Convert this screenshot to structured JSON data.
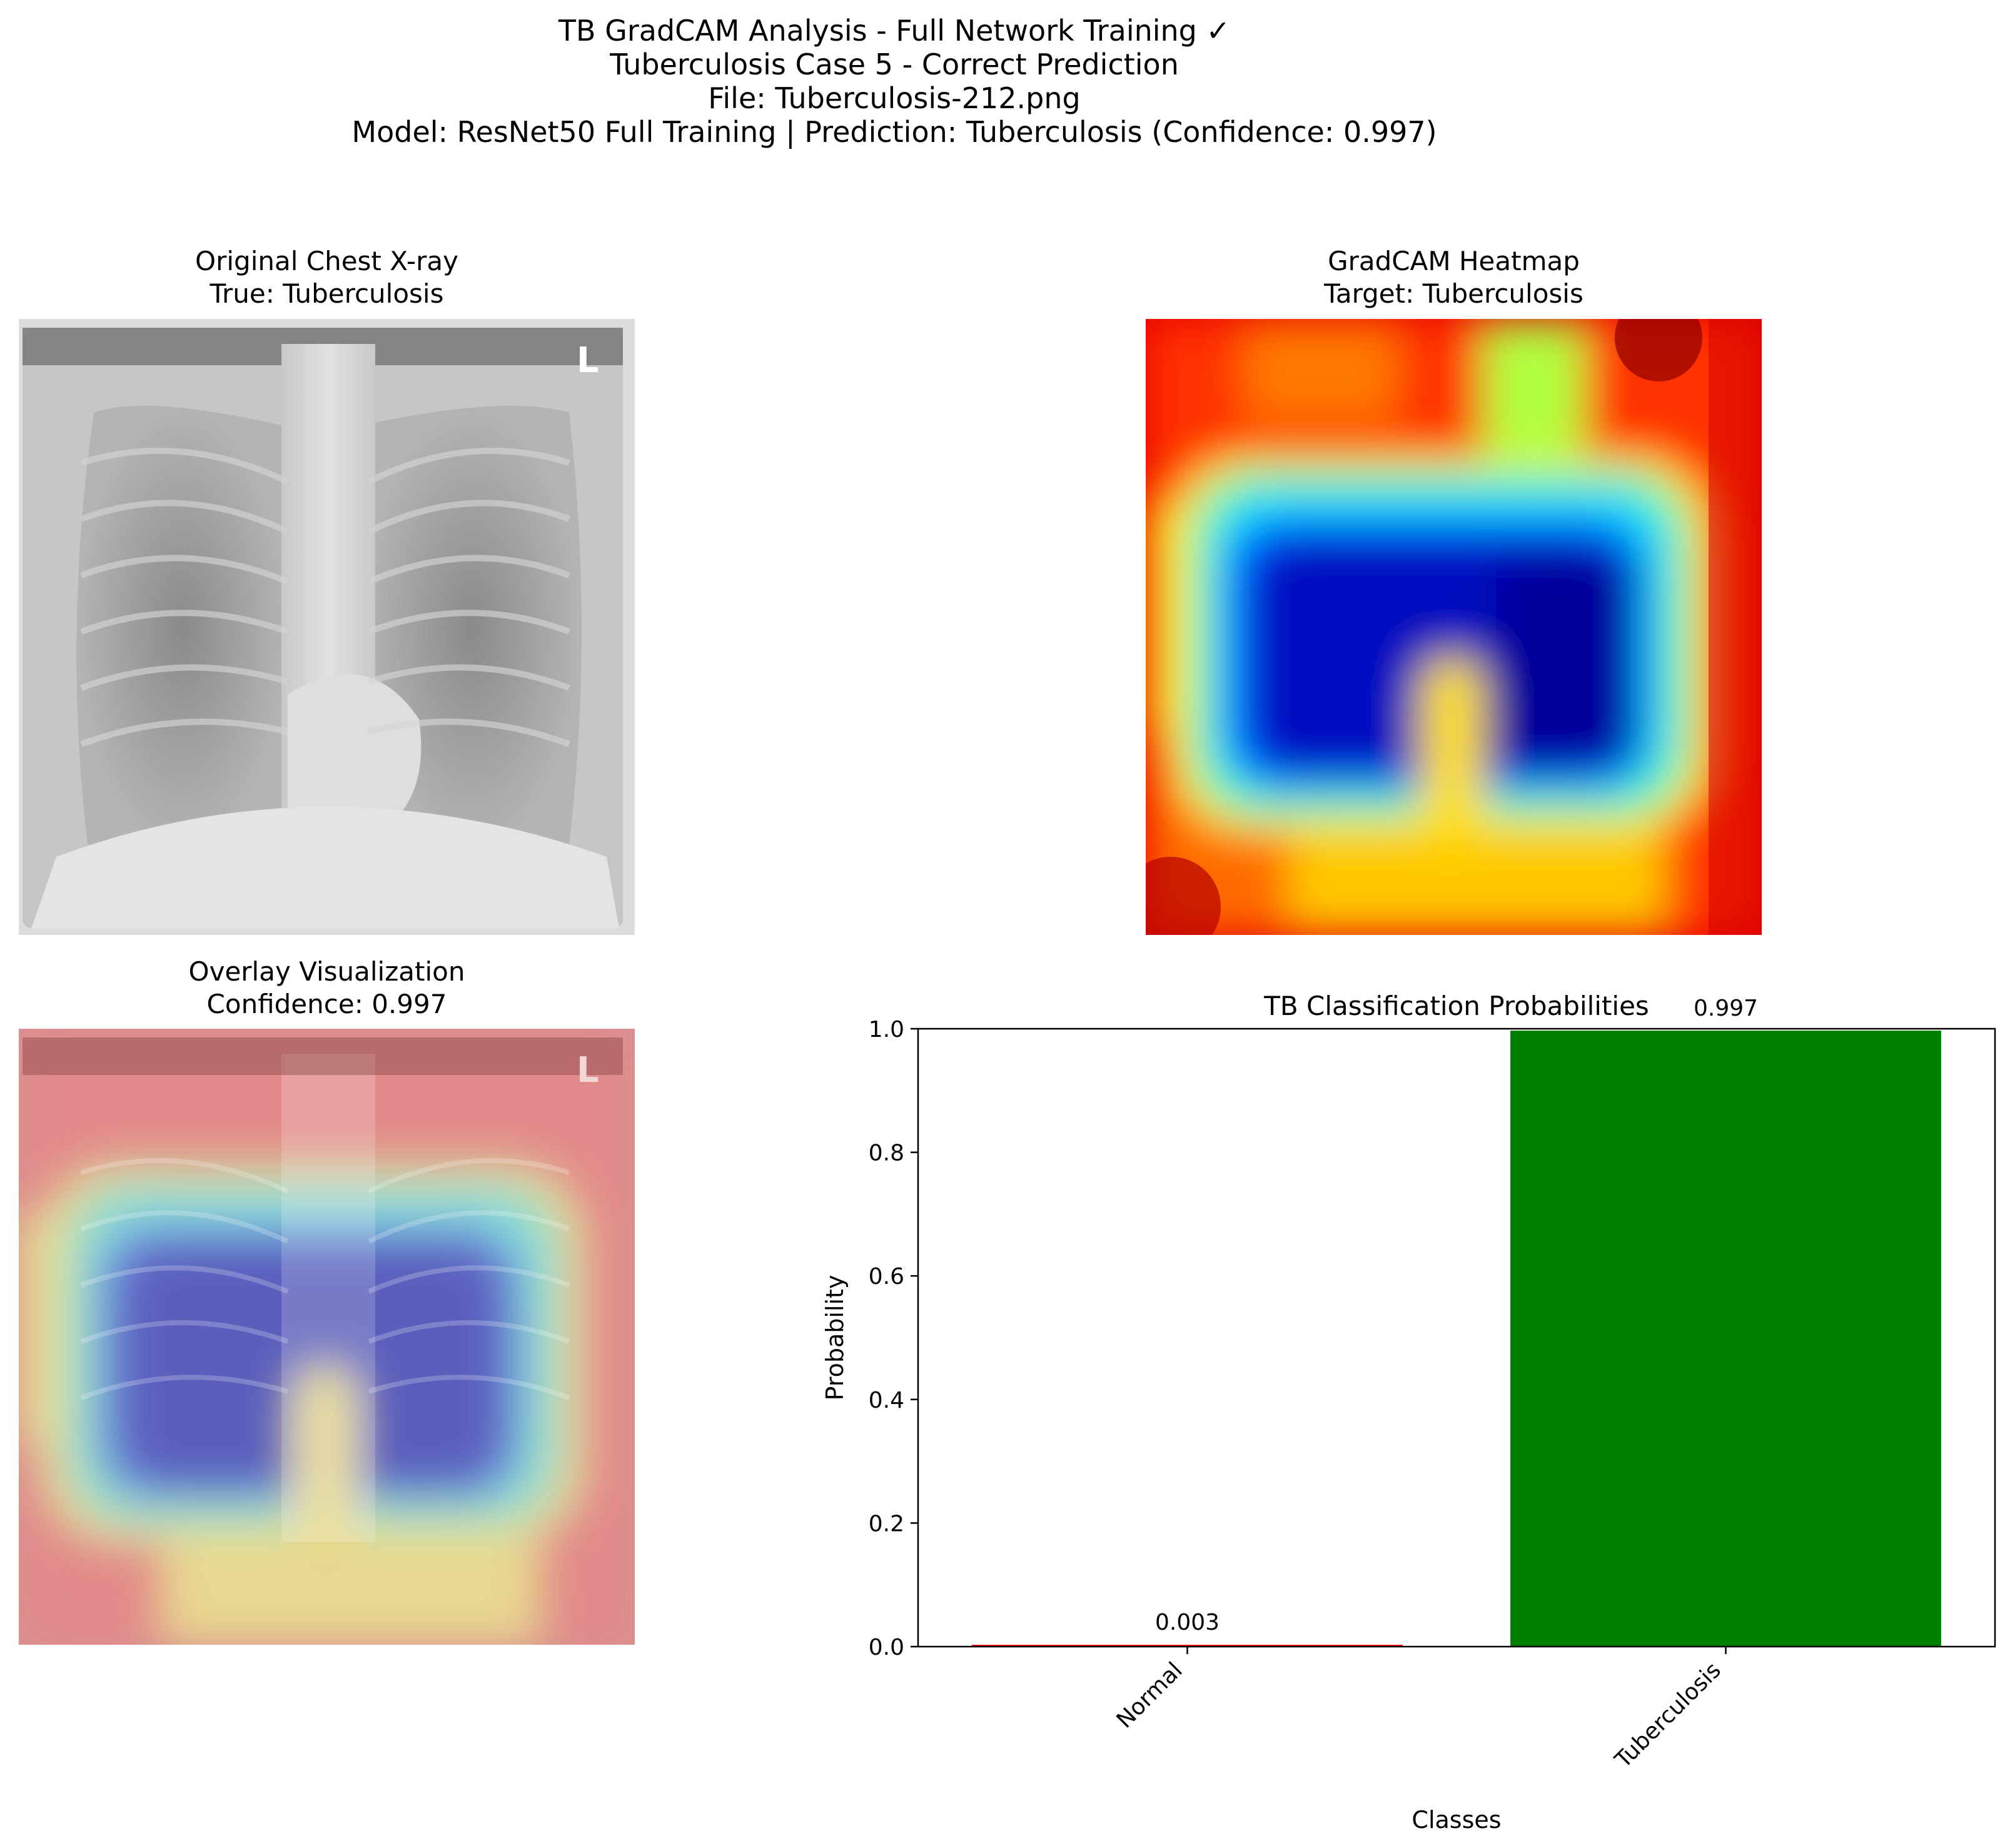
{
  "suptitle": {
    "line1": "TB GradCAM Analysis - Full Network Training ✓",
    "line2": "Tuberculosis Case 5 - Correct Prediction",
    "line3": "File: Tuberculosis-212.png",
    "line4": "Model: ResNet50 Full Training | Prediction: Tuberculosis (Confidence: 0.997)"
  },
  "panels": {
    "original": {
      "title": "Original Chest X-ray",
      "subtitle": "True: Tuberculosis",
      "marker_letter": "L"
    },
    "heatmap": {
      "title": "GradCAM Heatmap",
      "subtitle": "Target: Tuberculosis"
    },
    "overlay": {
      "title": "Overlay Visualization",
      "subtitle": "Confidence: 0.997",
      "marker_letter": "L"
    }
  },
  "chart_data": {
    "type": "bar",
    "title": "TB Classification Probabilities",
    "xlabel": "Classes",
    "ylabel": "Probability",
    "categories": [
      "Normal",
      "Tuberculosis"
    ],
    "values": [
      0.003,
      0.997
    ],
    "value_labels": [
      "0.003",
      "0.997"
    ],
    "colors": [
      "#ff0000",
      "#008000"
    ],
    "ylim": [
      0,
      1.0
    ],
    "yticks": [
      "0.0",
      "0.2",
      "0.4",
      "0.6",
      "0.8",
      "1.0"
    ],
    "grid": false
  }
}
